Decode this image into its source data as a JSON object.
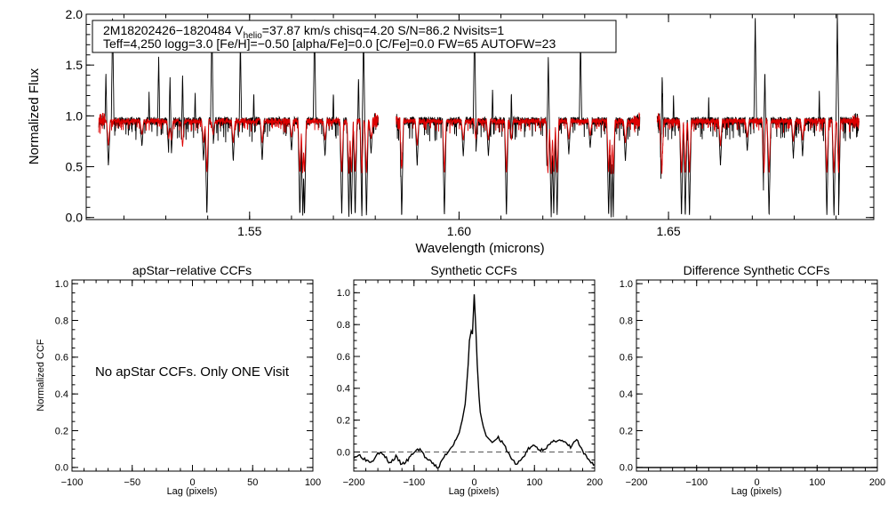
{
  "chart_data": [
    {
      "id": "spectrum",
      "type": "line",
      "title": "",
      "xlabel": "Wavelength (microns)",
      "ylabel": "Normalized Flux",
      "xlim": [
        1.511,
        1.699
      ],
      "ylim": [
        -0.02,
        2.0
      ],
      "xticks": [
        1.55,
        1.6,
        1.65
      ],
      "xtick_labels": [
        "1.55",
        "1.60",
        "1.65"
      ],
      "yticks": [
        0.0,
        0.5,
        1.0,
        1.5,
        2.0
      ],
      "ytick_labels": [
        "0.0",
        "0.5",
        "1.0",
        "1.5",
        "2.0"
      ],
      "chips": [
        [
          1.514,
          1.5807
        ],
        [
          1.585,
          1.6432
        ],
        [
          1.6473,
          1.6955
        ]
      ],
      "continuum": 0.95,
      "colors": {
        "observed": "#000000",
        "model": "#dd0000"
      },
      "info_line1_prefix": "2M18202426−1820484  V",
      "info_line1_sub": "helio",
      "info_line1_rest": "=37.87 km/s  chisq=4.20  S/N=86.2  Nvisits=1",
      "info_line2": "Teff=4,250 logg=3.0 [Fe/H]=−0.50 [alpha/Fe]=0.0 [C/Fe]=0.0 FW=65 AUTOFW=23",
      "absorption_lines": [
        [
          1.5163,
          0.5
        ],
        [
          1.5243,
          0.7
        ],
        [
          1.5307,
          0.62
        ],
        [
          1.5313,
          0.6
        ],
        [
          1.534,
          0.48
        ],
        [
          1.539,
          0.55
        ],
        [
          1.5398,
          0.0
        ],
        [
          1.5413,
          0.7
        ],
        [
          1.5461,
          0.55
        ],
        [
          1.553,
          0.55
        ],
        [
          1.56,
          0.65
        ],
        [
          1.562,
          0.0
        ],
        [
          1.5627,
          0.0
        ],
        [
          1.5631,
          0.0
        ],
        [
          1.568,
          0.6
        ],
        [
          1.572,
          0.0
        ],
        [
          1.5737,
          0.0
        ],
        [
          1.5743,
          0.0
        ],
        [
          1.5752,
          0.0
        ],
        [
          1.5768,
          0.0
        ],
        [
          1.5779,
          0.0
        ],
        [
          1.579,
          0.62
        ],
        [
          1.5863,
          0.0
        ],
        [
          1.59,
          0.5
        ],
        [
          1.5965,
          0.0
        ],
        [
          1.601,
          0.6
        ],
        [
          1.604,
          0.62
        ],
        [
          1.607,
          0.6
        ],
        [
          1.6113,
          0.0
        ],
        [
          1.6125,
          0.6
        ],
        [
          1.6212,
          0.0
        ],
        [
          1.622,
          0.0
        ],
        [
          1.6226,
          0.0
        ],
        [
          1.6234,
          0.0
        ],
        [
          1.6262,
          0.62
        ],
        [
          1.6313,
          0.68
        ],
        [
          1.6357,
          0.0
        ],
        [
          1.6363,
          0.0
        ],
        [
          1.6368,
          0.0
        ],
        [
          1.6397,
          0.55
        ],
        [
          1.6484,
          0.0
        ],
        [
          1.6531,
          0.0
        ],
        [
          1.654,
          0.0
        ],
        [
          1.655,
          0.0
        ],
        [
          1.6624,
          0.5
        ],
        [
          1.6688,
          0.65
        ],
        [
          1.6728,
          0.0
        ],
        [
          1.674,
          0.0
        ],
        [
          1.6798,
          0.58
        ],
        [
          1.682,
          0.6
        ],
        [
          1.6878,
          0.0
        ],
        [
          1.6895,
          0.0
        ],
        [
          1.6906,
          0.0
        ]
      ],
      "emission_spikes": [
        [
          1.5157,
          1.45
        ],
        [
          1.5173,
          2.0
        ],
        [
          1.526,
          1.25
        ],
        [
          1.5283,
          1.6
        ],
        [
          1.531,
          1.4
        ],
        [
          1.534,
          1.42
        ],
        [
          1.537,
          1.25
        ],
        [
          1.541,
          1.95
        ],
        [
          1.5478,
          1.75
        ],
        [
          1.551,
          1.25
        ],
        [
          1.5655,
          1.95
        ],
        [
          1.57,
          1.25
        ],
        [
          1.576,
          1.4
        ],
        [
          1.5772,
          1.85
        ],
        [
          1.6037,
          1.95
        ],
        [
          1.608,
          1.28
        ],
        [
          1.6125,
          1.25
        ],
        [
          1.6213,
          1.6
        ],
        [
          1.629,
          1.8
        ],
        [
          1.6485,
          1.42
        ],
        [
          1.6512,
          1.22
        ],
        [
          1.6596,
          1.2
        ],
        [
          1.6707,
          2.0
        ],
        [
          1.673,
          1.45
        ],
        [
          1.686,
          1.25
        ],
        [
          1.6903,
          2.0
        ]
      ]
    },
    {
      "id": "apstar_ccf",
      "type": "line",
      "title": "apStar−relative CCFs",
      "xlabel": "Lag (pixels)",
      "ylabel": "Normalized CCF",
      "xlim": [
        -100,
        100
      ],
      "ylim": [
        -0.02,
        1.02
      ],
      "xticks": [
        -100,
        -50,
        0,
        50,
        100
      ],
      "xtick_labels": [
        "−100",
        "−50",
        "0",
        "50",
        "100"
      ],
      "yticks": [
        0.0,
        0.2,
        0.4,
        0.6,
        0.8,
        1.0
      ],
      "ytick_labels": [
        "0.0",
        "0.2",
        "0.4",
        "0.6",
        "0.8",
        "1.0"
      ],
      "note": "No apStar CCFs.  Only ONE Visit"
    },
    {
      "id": "synthetic_ccf",
      "type": "line",
      "title": "Synthetic CCFs",
      "xlabel": "Lag (pixels)",
      "ylabel": "",
      "xlim": [
        -200,
        200
      ],
      "ylim": [
        -0.12,
        1.08
      ],
      "xticks": [
        -200,
        -100,
        0,
        100,
        200
      ],
      "xtick_labels": [
        "−200",
        "−100",
        "0",
        "100",
        "200"
      ],
      "yticks": [
        0.0,
        0.2,
        0.4,
        0.6,
        0.8,
        1.0
      ],
      "ytick_labels": [
        "0.0",
        "0.2",
        "0.4",
        "0.6",
        "0.8",
        "1.0"
      ],
      "x": [
        -200,
        -190,
        -180,
        -170,
        -160,
        -150,
        -140,
        -130,
        -120,
        -110,
        -100,
        -90,
        -80,
        -70,
        -60,
        -50,
        -40,
        -30,
        -25,
        -20,
        -15,
        -10,
        -8,
        -5,
        -3,
        0,
        3,
        5,
        8,
        10,
        15,
        20,
        25,
        30,
        40,
        50,
        60,
        70,
        80,
        90,
        100,
        110,
        120,
        130,
        140,
        150,
        160,
        170,
        180,
        190,
        200
      ],
      "y": [
        -0.03,
        -0.02,
        -0.05,
        -0.06,
        0.0,
        -0.02,
        -0.07,
        -0.03,
        -0.08,
        -0.05,
        0.0,
        0.02,
        -0.04,
        -0.07,
        -0.1,
        -0.03,
        0.02,
        0.08,
        0.12,
        0.2,
        0.3,
        0.55,
        0.7,
        0.76,
        0.74,
        0.99,
        0.75,
        0.55,
        0.35,
        0.25,
        0.16,
        0.1,
        0.08,
        0.06,
        0.09,
        0.04,
        -0.03,
        -0.08,
        -0.04,
        0.02,
        0.04,
        0.01,
        0.03,
        0.06,
        0.08,
        0.06,
        0.03,
        0.08,
        0.0,
        -0.05,
        -0.08
      ],
      "baseline": 0.0
    },
    {
      "id": "difference_ccf",
      "type": "line",
      "title": "Difference Synthetic CCFs",
      "xlabel": "Lag (pixels)",
      "ylabel": "",
      "xlim": [
        -200,
        200
      ],
      "ylim": [
        -0.02,
        1.02
      ],
      "xticks": [
        -200,
        -100,
        0,
        100,
        200
      ],
      "xtick_labels": [
        "−200",
        "−100",
        "0",
        "100",
        "200"
      ],
      "yticks": [
        0.0,
        0.2,
        0.4,
        0.6,
        0.8,
        1.0
      ],
      "ytick_labels": [
        "0.0",
        "0.2",
        "0.4",
        "0.6",
        "0.8",
        "1.0"
      ],
      "x": [
        -200,
        200
      ],
      "y": [
        0.0,
        0.0
      ]
    }
  ]
}
